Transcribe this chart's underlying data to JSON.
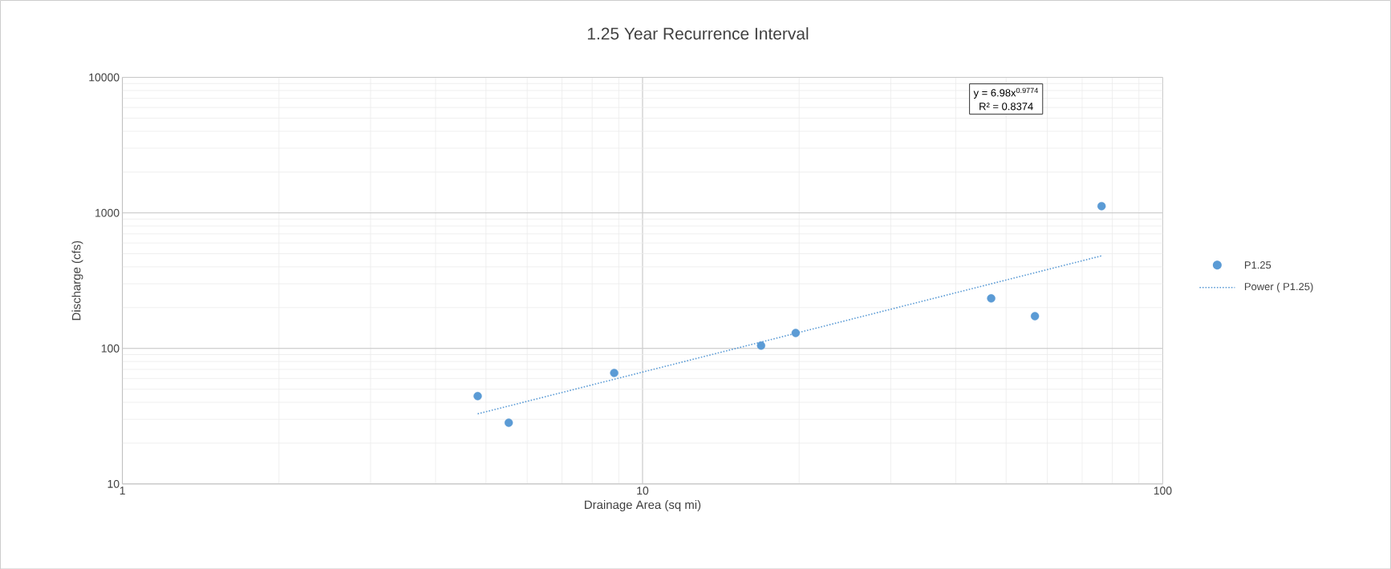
{
  "chart_data": {
    "type": "scatter",
    "title": "1.25 Year Recurrence Interval",
    "xlabel": "Drainage Area (sq mi)",
    "ylabel": "Discharge (cfs)",
    "log": "xy",
    "grid": true,
    "legend": "right",
    "xlim": [
      1,
      100
    ],
    "ylim": [
      10,
      10000
    ],
    "xticks": [
      1,
      10,
      100
    ],
    "yticks": [
      10,
      100,
      1000,
      10000
    ],
    "annotations": [
      "y = 6.98x$^{0.9774}$",
      "R² = 0.8374"
    ],
    "series": [
      {
        "name": "P1.25",
        "type": "scatter",
        "color": "#5b9bd5",
        "marker": "circle",
        "x": [
          4.82,
          5.53,
          8.82,
          16.9,
          19.7,
          46.8,
          56.8,
          76.3
        ],
        "values": [
          44.5,
          28.3,
          65.9,
          105,
          130,
          234,
          173,
          1122
        ]
      },
      {
        "name": "Power ( P1.25)",
        "type": "line",
        "color": "#5b9bd5",
        "line_style": "dotted",
        "marker": "none",
        "x": [
          4.82,
          76.3
        ],
        "values": [
          32.9,
          482
        ]
      }
    ]
  }
}
